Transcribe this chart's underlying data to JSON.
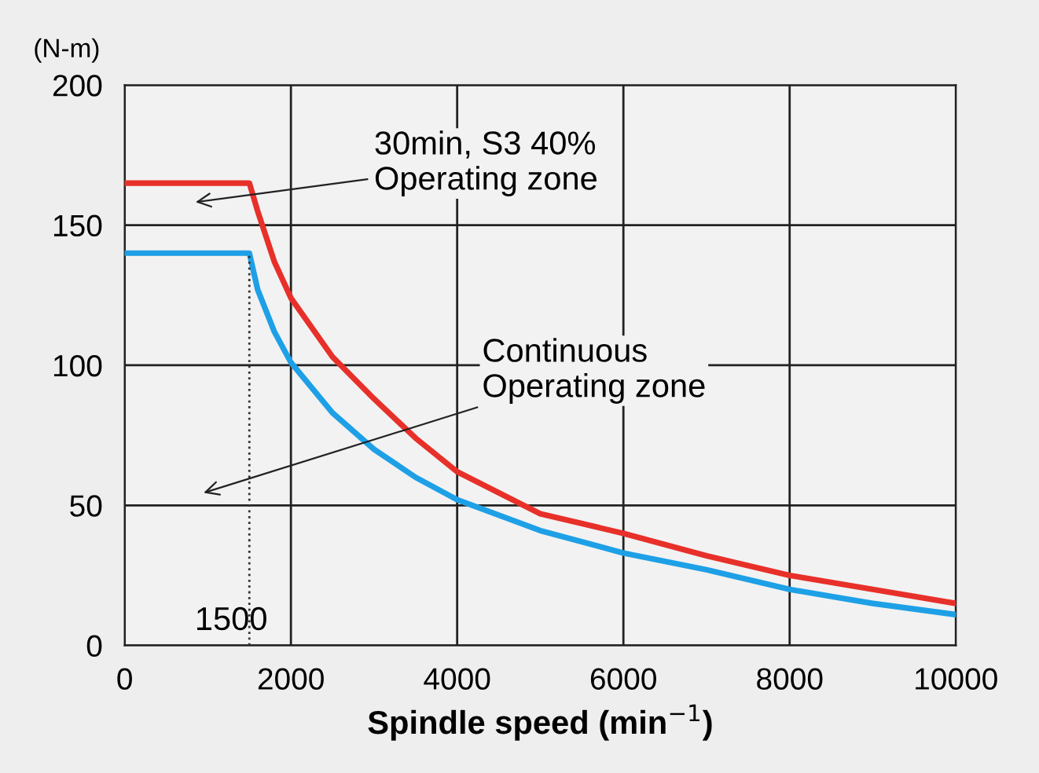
{
  "chart_data": {
    "type": "line",
    "xlabel": "Spindle speed (min$^{−1}$)",
    "ylabel": "(N-m)",
    "xlim": [
      0,
      10000
    ],
    "xticks": [
      0,
      2000,
      4000,
      6000,
      8000,
      10000
    ],
    "ylim": [
      0,
      200
    ],
    "yticks": [
      0,
      50,
      100,
      150,
      200
    ],
    "grid": true,
    "line_style": "solid",
    "marker": "none",
    "series": [
      {
        "color": "#e8302a",
        "x": [
          0,
          1500,
          1600,
          1800,
          2000,
          2500,
          3000,
          3500,
          4000,
          5000,
          6000,
          7000,
          8000,
          9000,
          10000
        ],
        "values": [
          165,
          165,
          155,
          137,
          124,
          103,
          88,
          74,
          62,
          47,
          40,
          32,
          25,
          20,
          15
        ]
      },
      {
        "color": "#1ea0e6",
        "x": [
          0,
          1500,
          1600,
          1800,
          2000,
          2500,
          3000,
          3500,
          4000,
          5000,
          6000,
          7000,
          8000,
          9000,
          10000
        ],
        "values": [
          140,
          140,
          127,
          112,
          101,
          83,
          70,
          60,
          52,
          41,
          33,
          27,
          20,
          15,
          11
        ]
      },
      {
        "color": "#333333",
        "x": [
          1500,
          1500
        ],
        "values": [
          0,
          140
        ],
        "line_style": "dotted"
      }
    ],
    "annotations": [
      "30min, S3 40%\nOperating zone",
      "Continuous\nOperating zone",
      {
        "text": "1500",
        "x": 1500,
        "y": 0
      }
    ]
  }
}
